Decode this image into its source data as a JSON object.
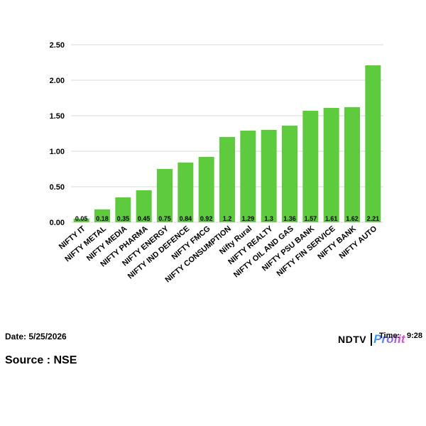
{
  "chart_data": {
    "type": "bar",
    "title": "",
    "xlabel": "",
    "ylabel": "",
    "ylim": [
      0,
      2.5
    ],
    "yticks": [
      "0.00",
      "0.50",
      "1.00",
      "1.50",
      "2.00",
      "2.50"
    ],
    "categories": [
      "NIFTY IT",
      "NIFTY METAL",
      "NIFTY MEDIA",
      "NIFTY PHARMA",
      "NIFTY ENERGY",
      "NIFTY IND DEFENCE",
      "NIFTY FMCG",
      "NIFTY CONSUMPTION",
      "Nifty Rural",
      "NIFTY REALTY",
      "NIFTY OIL AND GAS",
      "NIFTY PSU BANK",
      "NIFTY FIN SERVICE",
      "NIFTY BANK",
      "NIFTY AUTO"
    ],
    "values": [
      0.05,
      0.18,
      0.35,
      0.45,
      0.75,
      0.84,
      0.92,
      1.2,
      1.29,
      1.3,
      1.36,
      1.57,
      1.61,
      1.62,
      2.21
    ],
    "data_labels": [
      "0.05",
      "0.18",
      "0.35",
      "0.45",
      "0.75",
      "0.84",
      "0.92",
      "1.2",
      "1.29",
      "1.3",
      "1.36",
      "1.57",
      "1.61",
      "1.62",
      "2.21"
    ],
    "bar_color": "#5ecb3e",
    "grid": true,
    "legend": "none"
  },
  "footer": {
    "date": "Date: 5/25/2026",
    "source": "Source : NSE",
    "brand_ndtv": "NDTV",
    "brand_profit": "Profit",
    "time_label": "Time:",
    "time_value": "9:28"
  }
}
